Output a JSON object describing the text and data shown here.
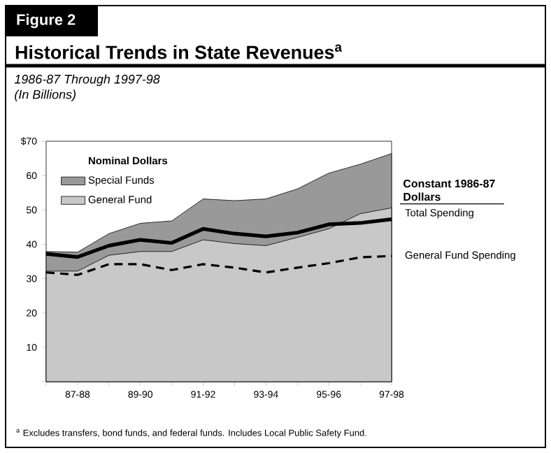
{
  "chart_data": {
    "type": "area",
    "title": "Historical Trends in State Revenues$^{a}$",
    "subtitle": "1986-87 Through 1997-98\n(In Billions)",
    "categories": [
      null,
      "87-88",
      null,
      "89-90",
      null,
      "91-92",
      null,
      "93-94",
      null,
      "95-96",
      null,
      "97-98"
    ],
    "stacked": true,
    "series": [
      {
        "name": "General Fund",
        "color": "#c8c8c8",
        "values": [
          32.2,
          32.2,
          36.8,
          37.9,
          37.9,
          41.3,
          40.2,
          39.6,
          42.0,
          44.5,
          48.9,
          50.6
        ]
      },
      {
        "name": "Special Funds",
        "color": "#999999",
        "values": [
          5.7,
          5.5,
          6.3,
          8.2,
          8.9,
          11.9,
          12.5,
          13.6,
          14.1,
          16.2,
          14.4,
          15.8
        ]
      },
      {
        "name": "Total Spending",
        "type": "line",
        "color": "#000000",
        "line_style": "solid",
        "values": [
          37.2,
          36.3,
          39.6,
          41.3,
          40.4,
          44.5,
          43.1,
          42.3,
          43.4,
          45.8,
          46.2,
          47.3
        ]
      },
      {
        "name": "General Fund Spending",
        "type": "line",
        "color": "#000000",
        "line_style": "dashed",
        "values": [
          31.8,
          31.1,
          34.2,
          34.2,
          32.5,
          34.2,
          33.2,
          31.8,
          33.2,
          34.5,
          36.2,
          36.6
        ]
      }
    ],
    "ylim": [
      0,
      70
    ],
    "yticks": [
      {
        "value": 0,
        "label": null
      },
      10,
      20,
      30,
      40,
      50,
      60,
      {
        "value": 70,
        "label": "$70"
      }
    ],
    "legend": "top left",
    "legend_title": "Nominal Dollars",
    "annotations": [
      "Figure 2",
      "Constant 1986-87 Dollars",
      "$^{a}$ Excludes transfers, bond funds, and federal funds. Includes Local Public Safety Fund."
    ]
  }
}
